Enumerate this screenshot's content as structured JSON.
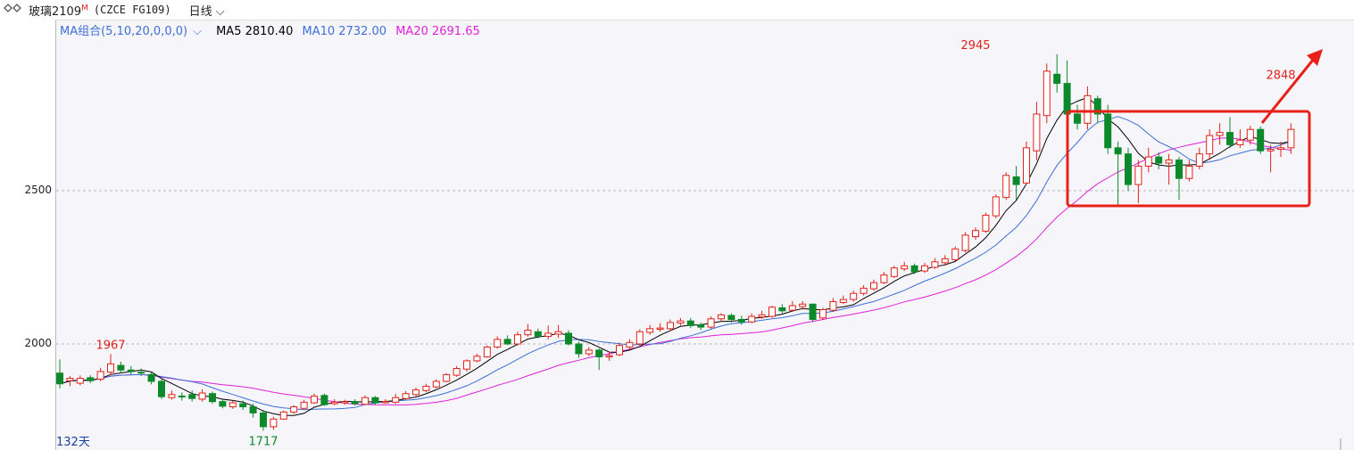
{
  "toolbar": {
    "icon": "chart-link-icon",
    "symbol": "玻璃2109",
    "flag": "M",
    "code": "(CZCE FG109)",
    "period": "日线"
  },
  "legend": {
    "combo": "MA组合(5,10,20,0,0,0)",
    "ma5": "MA5 2810.40",
    "ma10": "MA10 2732.00",
    "ma20": "MA20 2691.65"
  },
  "colors": {
    "up": "#e0231b",
    "down": "#0c8a2b",
    "ma5": "#000000",
    "ma10": "#3d6fd6",
    "ma20": "#e020d8",
    "box": "#e8201a"
  },
  "days_label": "132天",
  "chart_data": {
    "type": "candlestick",
    "y_ticks": [
      2000,
      2500
    ],
    "ylim": [
      1690,
      3000
    ],
    "grid": "dashed horizontal at ticks",
    "annotations": {
      "max": {
        "index": 90,
        "value": 2945,
        "label": "2945"
      },
      "min": {
        "index": 20,
        "value": 1717,
        "label": "1717"
      },
      "peak_left": {
        "index": 5,
        "value": 1967,
        "label": "1967"
      },
      "last_high": {
        "index": 120,
        "value": 2848,
        "label": "2848"
      }
    },
    "candles": [
      [
        1905,
        1870,
        1950,
        1855
      ],
      [
        1880,
        1888,
        1895,
        1862
      ],
      [
        1872,
        1888,
        1897,
        1865
      ],
      [
        1890,
        1880,
        1898,
        1872
      ],
      [
        1885,
        1910,
        1922,
        1878
      ],
      [
        1908,
        1935,
        1967,
        1898
      ],
      [
        1930,
        1915,
        1942,
        1905
      ],
      [
        1915,
        1910,
        1928,
        1900
      ],
      [
        1908,
        1905,
        1920,
        1895
      ],
      [
        1900,
        1878,
        1908,
        1868
      ],
      [
        1878,
        1828,
        1885,
        1820
      ],
      [
        1825,
        1835,
        1848,
        1818
      ],
      [
        1830,
        1828,
        1842,
        1815
      ],
      [
        1835,
        1822,
        1848,
        1812
      ],
      [
        1820,
        1840,
        1852,
        1812
      ],
      [
        1838,
        1812,
        1845,
        1805
      ],
      [
        1812,
        1797,
        1818,
        1790
      ],
      [
        1795,
        1808,
        1815,
        1788
      ],
      [
        1805,
        1795,
        1815,
        1785
      ],
      [
        1795,
        1775,
        1805,
        1760
      ],
      [
        1775,
        1730,
        1785,
        1717
      ],
      [
        1730,
        1755,
        1762,
        1720
      ],
      [
        1755,
        1778,
        1782,
        1752
      ],
      [
        1778,
        1795,
        1800,
        1772
      ],
      [
        1790,
        1810,
        1818,
        1785
      ],
      [
        1808,
        1830,
        1838,
        1805
      ],
      [
        1832,
        1802,
        1838,
        1798
      ],
      [
        1805,
        1810,
        1820,
        1800
      ],
      [
        1808,
        1812,
        1818,
        1802
      ],
      [
        1812,
        1805,
        1820,
        1800
      ],
      [
        1803,
        1825,
        1832,
        1800
      ],
      [
        1825,
        1808,
        1830,
        1802
      ],
      [
        1808,
        1812,
        1820,
        1805
      ],
      [
        1810,
        1825,
        1838,
        1805
      ],
      [
        1822,
        1838,
        1846,
        1818
      ],
      [
        1835,
        1850,
        1858,
        1830
      ],
      [
        1848,
        1862,
        1870,
        1842
      ],
      [
        1860,
        1878,
        1885,
        1855
      ],
      [
        1878,
        1900,
        1905,
        1875
      ],
      [
        1898,
        1920,
        1928,
        1893
      ],
      [
        1918,
        1945,
        1950,
        1910
      ],
      [
        1945,
        1960,
        1968,
        1940
      ],
      [
        1958,
        1990,
        1995,
        1955
      ],
      [
        1990,
        2015,
        2025,
        1985
      ],
      [
        2015,
        2000,
        2028,
        1996
      ],
      [
        2000,
        2030,
        2040,
        1995
      ],
      [
        2030,
        2045,
        2065,
        2024
      ],
      [
        2040,
        2025,
        2050,
        2018
      ],
      [
        2025,
        2035,
        2060,
        2015
      ],
      [
        2032,
        2040,
        2062,
        2020
      ],
      [
        2035,
        2000,
        2045,
        1995
      ],
      [
        2000,
        1968,
        2008,
        1955
      ],
      [
        1968,
        1980,
        1990,
        1960
      ],
      [
        1980,
        1958,
        1985,
        1915
      ],
      [
        1958,
        1962,
        1975,
        1945
      ],
      [
        1965,
        1995,
        2005,
        1960
      ],
      [
        1990,
        2005,
        2015,
        1982
      ],
      [
        2000,
        2040,
        2048,
        1995
      ],
      [
        2038,
        2050,
        2062,
        2030
      ],
      [
        2048,
        2052,
        2068,
        2040
      ],
      [
        2050,
        2070,
        2080,
        2042
      ],
      [
        2068,
        2075,
        2085,
        2060
      ],
      [
        2075,
        2060,
        2085,
        2052
      ],
      [
        2062,
        2055,
        2070,
        2045
      ],
      [
        2055,
        2082,
        2090,
        2050
      ],
      [
        2082,
        2095,
        2100,
        2075
      ],
      [
        2093,
        2080,
        2100,
        2070
      ],
      [
        2080,
        2072,
        2092,
        2062
      ],
      [
        2072,
        2090,
        2100,
        2068
      ],
      [
        2088,
        2095,
        2108,
        2082
      ],
      [
        2090,
        2120,
        2125,
        2085
      ],
      [
        2118,
        2108,
        2130,
        2100
      ],
      [
        2110,
        2125,
        2140,
        2105
      ],
      [
        2122,
        2130,
        2140,
        2112
      ],
      [
        2130,
        2080,
        2132,
        2072
      ],
      [
        2085,
        2112,
        2118,
        2078
      ],
      [
        2110,
        2138,
        2150,
        2105
      ],
      [
        2135,
        2145,
        2158,
        2130
      ],
      [
        2145,
        2165,
        2175,
        2138
      ],
      [
        2165,
        2182,
        2192,
        2158
      ],
      [
        2180,
        2200,
        2210,
        2174
      ],
      [
        2200,
        2225,
        2235,
        2195
      ],
      [
        2220,
        2248,
        2255,
        2215
      ],
      [
        2245,
        2255,
        2268,
        2238
      ],
      [
        2255,
        2235,
        2262,
        2228
      ],
      [
        2238,
        2255,
        2265,
        2232
      ],
      [
        2250,
        2268,
        2280,
        2245
      ],
      [
        2265,
        2278,
        2290,
        2255
      ],
      [
        2275,
        2310,
        2318,
        2270
      ],
      [
        2305,
        2355,
        2365,
        2298
      ],
      [
        2350,
        2370,
        2380,
        2340
      ],
      [
        2368,
        2420,
        2428,
        2362
      ],
      [
        2418,
        2480,
        2488,
        2410
      ],
      [
        2478,
        2550,
        2560,
        2470
      ],
      [
        2545,
        2520,
        2580,
        2470
      ],
      [
        2525,
        2640,
        2660,
        2520
      ],
      [
        2630,
        2750,
        2790,
        2600
      ],
      [
        2745,
        2890,
        2915,
        2720
      ],
      [
        2880,
        2850,
        2945,
        2820
      ],
      [
        2850,
        2750,
        2925,
        2680
      ],
      [
        2750,
        2720,
        2780,
        2700
      ],
      [
        2720,
        2810,
        2840,
        2700
      ],
      [
        2800,
        2750,
        2810,
        2720
      ],
      [
        2750,
        2640,
        2780,
        2620
      ],
      [
        2640,
        2620,
        2660,
        2455
      ],
      [
        2620,
        2520,
        2640,
        2500
      ],
      [
        2520,
        2580,
        2600,
        2460
      ],
      [
        2580,
        2610,
        2640,
        2560
      ],
      [
        2610,
        2590,
        2625,
        2570
      ],
      [
        2590,
        2600,
        2620,
        2520
      ],
      [
        2600,
        2540,
        2610,
        2470
      ],
      [
        2540,
        2580,
        2600,
        2530
      ],
      [
        2580,
        2620,
        2640,
        2570
      ],
      [
        2620,
        2680,
        2700,
        2600
      ],
      [
        2680,
        2690,
        2720,
        2650
      ],
      [
        2690,
        2650,
        2740,
        2640
      ],
      [
        2650,
        2665,
        2700,
        2640
      ],
      [
        2665,
        2700,
        2712,
        2650
      ],
      [
        2700,
        2630,
        2710,
        2620
      ],
      [
        2630,
        2635,
        2650,
        2560
      ],
      [
        2635,
        2640,
        2660,
        2610
      ],
      [
        2640,
        2700,
        2720,
        2620
      ]
    ],
    "ma5": [],
    "ma10": [],
    "ma20": []
  }
}
